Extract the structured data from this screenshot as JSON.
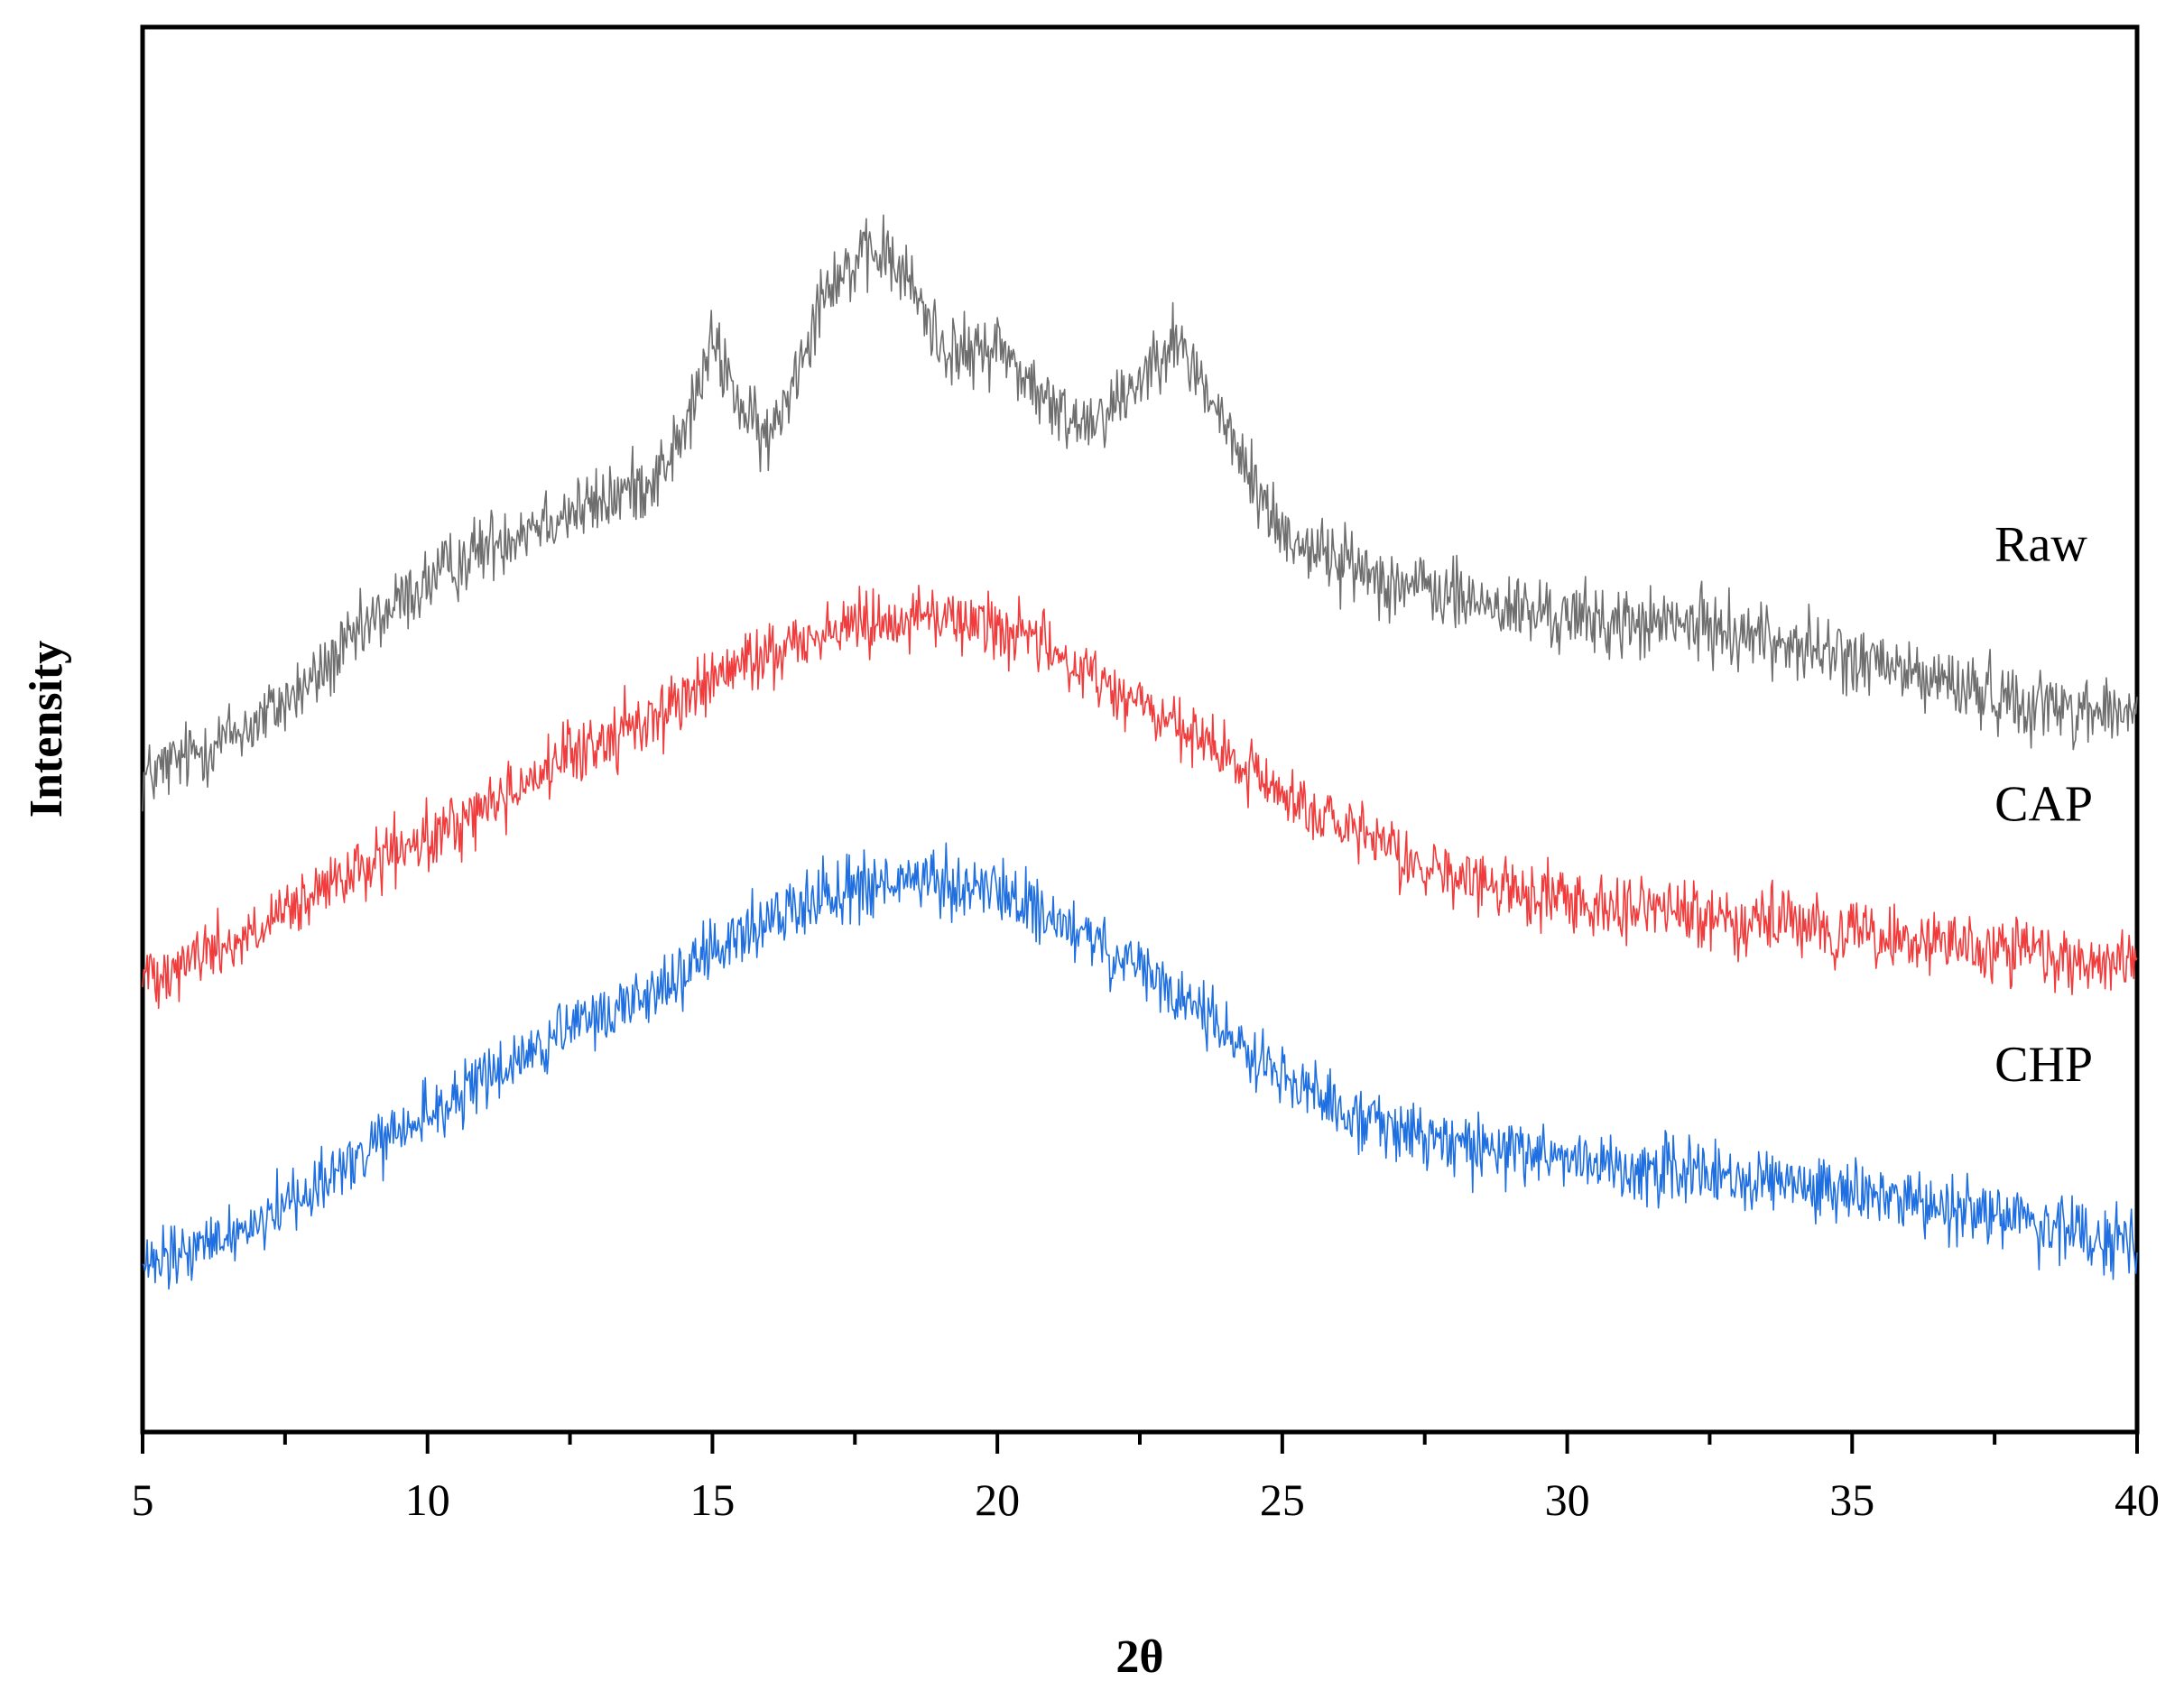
{
  "chart_data": {
    "type": "line",
    "title": "",
    "xlabel": "2θ",
    "ylabel": "Intensity",
    "xlim": [
      5,
      40
    ],
    "ylim": [
      0,
      100
    ],
    "y_ticks_shown": false,
    "x_ticks": [
      5,
      10,
      15,
      20,
      25,
      30,
      35,
      40
    ],
    "x_tick_labels": [
      "5",
      "10",
      "15",
      "20",
      "25",
      "30",
      "35",
      "40"
    ],
    "grid": false,
    "legend": "none (series labeled inline at right)",
    "series": [
      {
        "name": "Raw",
        "color": "#6e6e6e",
        "noise": 2.2,
        "x": [
          5,
          6,
          7,
          8,
          9,
          10,
          11,
          12,
          13,
          14,
          14.5,
          15,
          15.3,
          15.6,
          16,
          16.5,
          17,
          17.5,
          18,
          18.5,
          19,
          19.5,
          20,
          20.5,
          21,
          21.5,
          22,
          22.5,
          23,
          23.5,
          24,
          24.5,
          25,
          26,
          27,
          28,
          29,
          30,
          31,
          32,
          33,
          34,
          35,
          36,
          37,
          38,
          39,
          40
        ],
        "y": [
          46.5,
          48.5,
          50.5,
          53.5,
          57.5,
          60.5,
          63,
          65,
          66,
          68,
          71,
          77.5,
          75,
          72,
          70.5,
          76,
          82,
          83,
          84,
          81.5,
          77.5,
          76.5,
          77.5,
          75,
          72.5,
          72,
          73,
          75,
          78,
          75.5,
          71.5,
          67.5,
          64,
          62,
          60.5,
          59.5,
          58.5,
          58,
          57.5,
          57.5,
          57,
          56,
          55,
          54,
          53,
          52,
          51.5,
          51
        ]
      },
      {
        "name": "CAP",
        "color": "#f03c3c",
        "noise": 2.0,
        "x": [
          5,
          6,
          7,
          8,
          9,
          10,
          11,
          12,
          13,
          14,
          15,
          16,
          17,
          18,
          19,
          20,
          21,
          22,
          23,
          24,
          25,
          26,
          27,
          28,
          29,
          30,
          31,
          32,
          33,
          34,
          35,
          36,
          37,
          38,
          39,
          40
        ],
        "y": [
          32.5,
          34,
          35.5,
          38,
          40.5,
          42,
          44.5,
          47,
          49,
          51,
          53.5,
          55.5,
          57,
          58,
          58,
          57.5,
          55.5,
          53,
          50.5,
          48,
          45.5,
          43,
          41,
          39.5,
          38.5,
          38,
          37.5,
          37,
          36.5,
          36,
          35.5,
          35,
          34.5,
          34,
          33.5,
          33.5
        ]
      },
      {
        "name": "CHP",
        "color": "#1f6fe0",
        "noise": 2.0,
        "x": [
          5,
          6,
          7,
          8,
          9,
          10,
          11,
          12,
          13,
          14,
          15,
          16,
          17,
          18,
          19,
          20,
          21,
          22,
          23,
          24,
          25,
          26,
          27,
          28,
          29,
          30,
          31,
          32,
          33,
          34,
          35,
          36,
          37,
          38,
          39,
          40
        ],
        "y": [
          11.5,
          13,
          15,
          17.5,
          20,
          22.5,
          25,
          27.5,
          29.5,
          31.5,
          34,
          36.5,
          38.5,
          39,
          39,
          38.5,
          36.5,
          34,
          31.5,
          28.5,
          25.5,
          23,
          21.5,
          20.5,
          20,
          19.5,
          19,
          18.5,
          18,
          17.5,
          17,
          16.5,
          16,
          15,
          14,
          13.5
        ]
      }
    ],
    "annotations": [
      {
        "text": "Raw",
        "x": 37.5,
        "y": 62
      },
      {
        "text": "CAP",
        "x": 37.5,
        "y": 43.5
      },
      {
        "text": "CHP",
        "x": 37.5,
        "y": 25
      }
    ]
  }
}
